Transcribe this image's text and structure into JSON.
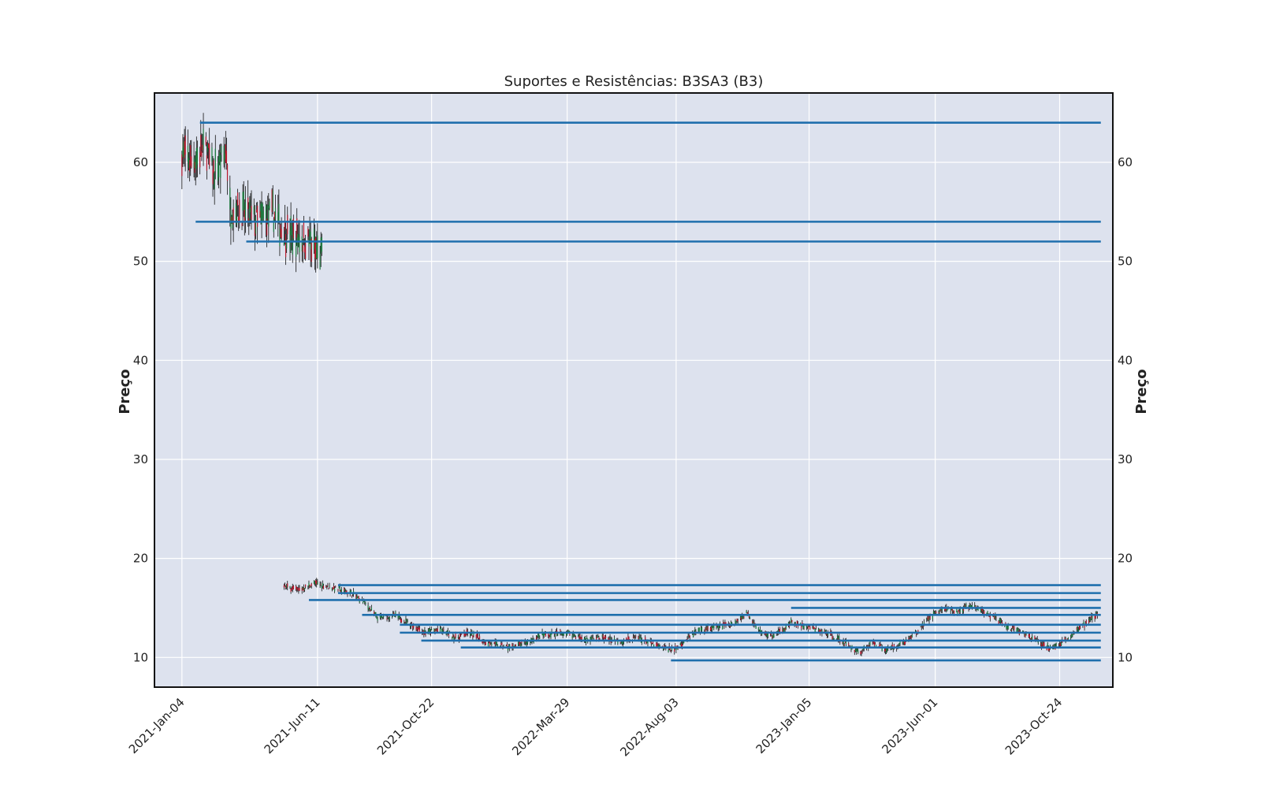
{
  "chart_data": {
    "type": "candlestick",
    "title": "Suportes e Resistências: B3SA3 (B3)",
    "ylabel_left": "Preço",
    "ylabel_right": "Preço",
    "ylim": [
      7,
      67
    ],
    "y_ticks": [
      10,
      20,
      30,
      40,
      50,
      60
    ],
    "x_range": [
      "2020-12-03",
      "2023-12-25"
    ],
    "x_ticks": [
      {
        "date": "2021-01-04",
        "label": "2021-Jan-04"
      },
      {
        "date": "2021-06-11",
        "label": "2021-Jun-11"
      },
      {
        "date": "2021-10-22",
        "label": "2021-Oct-22"
      },
      {
        "date": "2022-03-29",
        "label": "2022-Mar-29"
      },
      {
        "date": "2022-08-03",
        "label": "2022-Aug-03"
      },
      {
        "date": "2023-01-05",
        "label": "2023-Jan-05"
      },
      {
        "date": "2023-06-01",
        "label": "2023-Jun-01"
      },
      {
        "date": "2023-10-24",
        "label": "2023-Oct-24"
      }
    ],
    "grid": true,
    "colors": {
      "background": "#dde2ee",
      "level_line": "#1f6fad",
      "up": "#1a7a3c",
      "down": "#b8182c",
      "wick": "#111111"
    },
    "price_path": [
      [
        "2021-01-04",
        61
      ],
      [
        "2021-01-15",
        60
      ],
      [
        "2021-02-01",
        61.5
      ],
      [
        "2021-02-10",
        59
      ],
      [
        "2021-02-25",
        61
      ],
      [
        "2021-03-01",
        55.5
      ],
      [
        "2021-03-15",
        55
      ],
      [
        "2021-04-01",
        54
      ],
      [
        "2021-04-20",
        55
      ],
      [
        "2021-05-01",
        53
      ],
      [
        "2021-05-15",
        52.5
      ],
      [
        "2021-06-01",
        52
      ],
      [
        "2021-06-10",
        51
      ],
      [
        "2021-06-17",
        50.5
      ],
      [
        "2021-05-03",
        17.2
      ],
      [
        "2021-05-20",
        16.8
      ],
      [
        "2021-06-07",
        17.5
      ],
      [
        "2021-07-01",
        17
      ],
      [
        "2021-07-20",
        16.5
      ],
      [
        "2021-08-05",
        15.5
      ],
      [
        "2021-08-20",
        14
      ],
      [
        "2021-09-10",
        14.2
      ],
      [
        "2021-09-25",
        13.5
      ],
      [
        "2021-10-15",
        12.5
      ],
      [
        "2021-11-01",
        12.8
      ],
      [
        "2021-11-20",
        12
      ],
      [
        "2021-12-05",
        12.5
      ],
      [
        "2021-12-25",
        11.5
      ],
      [
        "2022-01-20",
        11
      ],
      [
        "2022-02-10",
        11.5
      ],
      [
        "2022-03-01",
        12.3
      ],
      [
        "2022-03-29",
        12.5
      ],
      [
        "2022-04-20",
        11.8
      ],
      [
        "2022-05-10",
        12
      ],
      [
        "2022-06-01",
        11.6
      ],
      [
        "2022-06-20",
        12
      ],
      [
        "2022-07-15",
        11
      ],
      [
        "2022-08-01",
        10.8
      ],
      [
        "2022-08-25",
        12.5
      ],
      [
        "2022-09-15",
        13
      ],
      [
        "2022-10-10",
        13.5
      ],
      [
        "2022-10-25",
        14.5
      ],
      [
        "2022-11-10",
        12.5
      ],
      [
        "2022-11-25",
        12.2
      ],
      [
        "2022-12-15",
        13.5
      ],
      [
        "2023-01-05",
        13
      ],
      [
        "2023-01-25",
        12.5
      ],
      [
        "2023-02-15",
        11.5
      ],
      [
        "2023-03-05",
        10.5
      ],
      [
        "2023-03-20",
        11.5
      ],
      [
        "2023-04-05",
        10.8
      ],
      [
        "2023-04-25",
        11.5
      ],
      [
        "2023-05-10",
        12.5
      ],
      [
        "2023-05-25",
        14
      ],
      [
        "2023-06-10",
        15
      ],
      [
        "2023-06-25",
        14.5
      ],
      [
        "2023-07-10",
        15.2
      ],
      [
        "2023-07-25",
        14.8
      ],
      [
        "2023-08-10",
        14
      ],
      [
        "2023-08-25",
        13
      ],
      [
        "2023-09-10",
        12.5
      ],
      [
        "2023-09-25",
        11.8
      ],
      [
        "2023-10-10",
        11
      ],
      [
        "2023-10-24",
        11.2
      ],
      [
        "2023-11-10",
        12.5
      ],
      [
        "2023-11-25",
        13.5
      ],
      [
        "2023-12-08",
        14.5
      ]
    ],
    "support_resistance_levels": [
      {
        "price": 64.0,
        "start": "2021-01-25"
      },
      {
        "price": 54.0,
        "start": "2021-01-20"
      },
      {
        "price": 52.0,
        "start": "2021-03-20"
      },
      {
        "price": 17.3,
        "start": "2021-07-05"
      },
      {
        "price": 16.5,
        "start": "2021-07-05"
      },
      {
        "price": 15.8,
        "start": "2021-06-01"
      },
      {
        "price": 15.0,
        "start": "2022-12-15"
      },
      {
        "price": 14.3,
        "start": "2021-08-02"
      },
      {
        "price": 13.3,
        "start": "2021-09-15"
      },
      {
        "price": 12.5,
        "start": "2021-09-15"
      },
      {
        "price": 11.7,
        "start": "2021-10-10"
      },
      {
        "price": 11.0,
        "start": "2021-11-25"
      },
      {
        "price": 9.7,
        "start": "2022-07-28"
      }
    ]
  }
}
